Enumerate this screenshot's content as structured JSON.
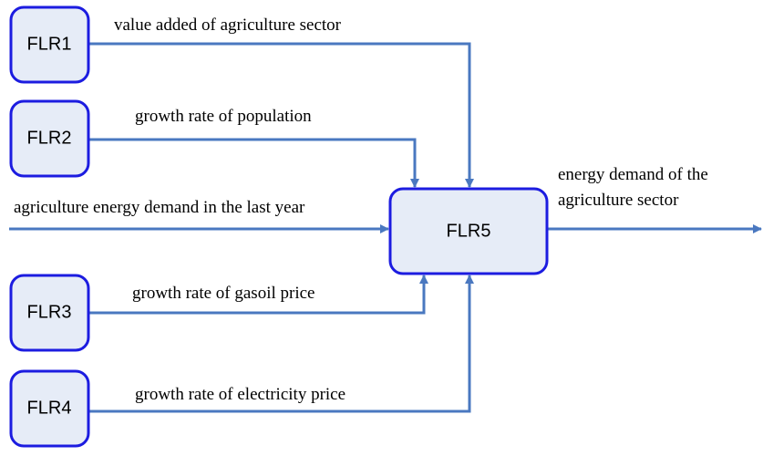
{
  "nodes": [
    {
      "label": "FLR1"
    },
    {
      "label": "FLR2"
    },
    {
      "label": "FLR3"
    },
    {
      "label": "FLR4"
    },
    {
      "label": "FLR5"
    }
  ],
  "edges": [
    {
      "label": "value added of agriculture sector"
    },
    {
      "label": "growth rate of population"
    },
    {
      "label": "agriculture energy demand in the last year"
    },
    {
      "label": "growth rate of gasoil price"
    },
    {
      "label": "growth rate of electricity price"
    }
  ],
  "output": {
    "lines": [
      "energy demand of the",
      "agriculture sector"
    ]
  }
}
